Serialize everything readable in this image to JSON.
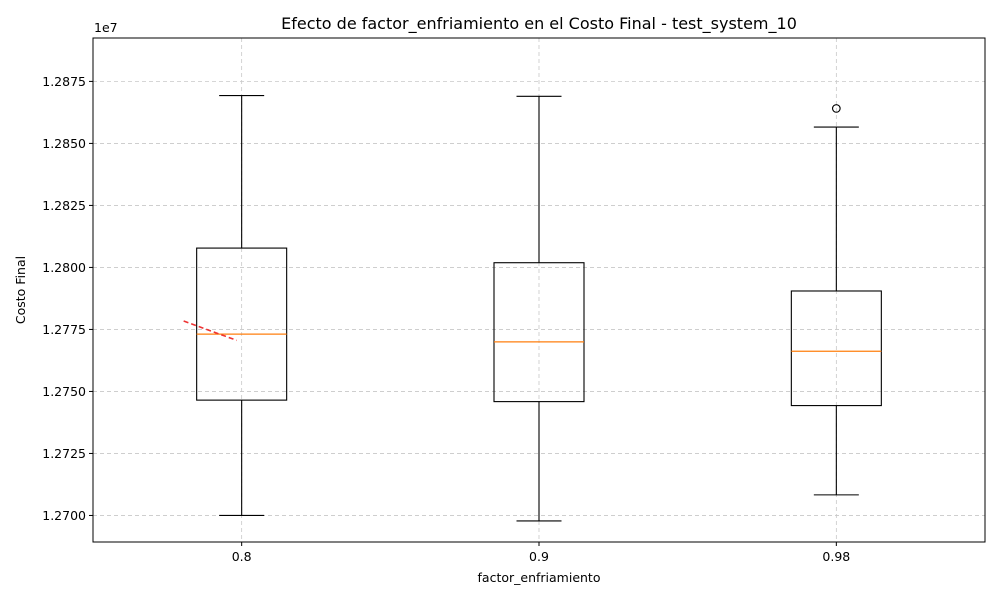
{
  "chart_data": {
    "type": "boxplot",
    "title": "Efecto de factor_enfriamiento en el Costo Final - test_system_10",
    "xlabel": "factor_enfriamiento",
    "ylabel": "Costo Final",
    "y_offset_label": "1e7",
    "categories": [
      "0.8",
      "0.9",
      "0.98"
    ],
    "ylim": [
      1.26893,
      1.28925
    ],
    "y_ticks": [
      1.27,
      1.2725,
      1.275,
      1.2775,
      1.28,
      1.2825,
      1.285,
      1.2875
    ],
    "y_tick_labels": [
      "1.2700",
      "1.2725",
      "1.2750",
      "1.2775",
      "1.2800",
      "1.2825",
      "1.2850",
      "1.2875"
    ],
    "grid": true,
    "boxes": [
      {
        "category": "0.8",
        "whisker_low": 1.27,
        "q1": 1.27465,
        "median": 1.27731,
        "q3": 1.28078,
        "whisker_high": 1.28693,
        "outliers": []
      },
      {
        "category": "0.9",
        "whisker_low": 1.26978,
        "q1": 1.27459,
        "median": 1.277,
        "q3": 1.28019,
        "whisker_high": 1.2869,
        "outliers": []
      },
      {
        "category": "0.98",
        "whisker_low": 1.27083,
        "q1": 1.27443,
        "median": 1.27662,
        "q3": 1.27905,
        "whisker_high": 1.28566,
        "outliers": [
          1.28641
        ]
      }
    ],
    "trend_line": {
      "x": [
        0.8,
        0.98
      ],
      "y": [
        1.27784,
        1.27706
      ],
      "color": "#ee3333",
      "style": "dashed"
    },
    "colors": {
      "box": "#000000",
      "median": "#ff7f0e",
      "grid": "#c8c8c8"
    }
  }
}
